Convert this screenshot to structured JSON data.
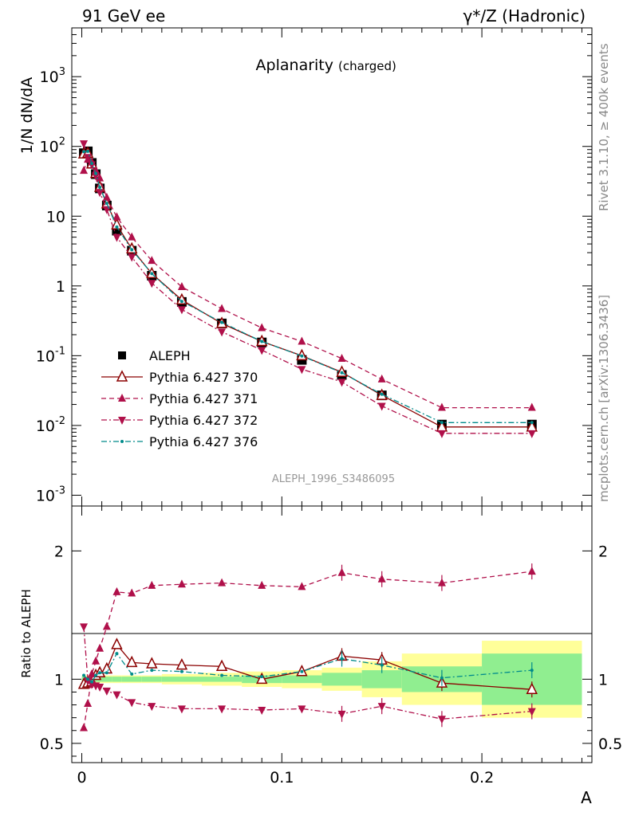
{
  "header": {
    "left": "91 GeV ee",
    "right": "γ*/Z (Hadronic)"
  },
  "side_labels": {
    "rivet": "Rivet 3.1.10, ≥ 400k events",
    "site": "mcplots.cern.ch [arXiv:1306.3436]"
  },
  "chart_data": [
    {
      "type": "line",
      "title": "Aplanarity",
      "subtitle": "(charged)",
      "ylabel": "1/N dN/dA",
      "yscale": "log",
      "ylim": [
        0.0007,
        5000
      ],
      "xlim": [
        -0.005,
        0.255
      ],
      "ytick_labels": [
        "10^-3",
        "10^-2",
        "10^-1",
        "1",
        "10",
        "10^2",
        "10^3"
      ],
      "watermark": "ALEPH_1996_S3486095",
      "legend_position": "bottom-left",
      "x": [
        0.001,
        0.003,
        0.005,
        0.007,
        0.009,
        0.0125,
        0.0175,
        0.025,
        0.035,
        0.05,
        0.07,
        0.09,
        0.11,
        0.13,
        0.15,
        0.18,
        0.225
      ],
      "series": [
        {
          "name": "ALEPH",
          "color": "#000000",
          "marker": "square",
          "line": "none",
          "values": [
            80,
            85,
            58,
            40,
            25,
            14.2,
            6.2,
            3.2,
            1.4,
            0.59,
            0.29,
            0.155,
            0.087,
            0.053,
            0.027,
            0.0103,
            0.0103
          ]
        },
        {
          "name": "Pythia 6.427 370",
          "color": "#8b0000",
          "marker": "open-triangle-up",
          "line": "solid",
          "values": [
            78,
            80,
            56,
            41,
            26,
            15,
            7.5,
            3.4,
            1.5,
            0.63,
            0.29,
            0.16,
            0.1,
            0.058,
            0.027,
            0.0095,
            0.0095
          ]
        },
        {
          "name": "Pythia 6.427 371",
          "color": "#b0104a",
          "marker": "triangle-up",
          "line": "dashed",
          "values": [
            45,
            65,
            60,
            45,
            35,
            18.5,
            9.7,
            5.0,
            2.3,
            0.97,
            0.47,
            0.25,
            0.16,
            0.091,
            0.046,
            0.018,
            0.018
          ]
        },
        {
          "name": "Pythia 6.427 372",
          "color": "#b0104a",
          "marker": "triangle-down",
          "line": "dash-dot",
          "values": [
            110,
            70,
            55,
            38,
            22,
            12.5,
            5.0,
            2.6,
            1.1,
            0.46,
            0.22,
            0.12,
            0.064,
            0.042,
            0.019,
            0.0077,
            0.0077
          ]
        },
        {
          "name": "Pythia 6.427 376",
          "color": "#008b8b",
          "marker": "dot",
          "line": "dash-dot",
          "values": [
            84,
            85,
            57,
            41,
            26,
            15.3,
            7.0,
            3.3,
            1.5,
            0.6,
            0.3,
            0.16,
            0.099,
            0.057,
            0.028,
            0.011,
            0.011
          ]
        }
      ]
    },
    {
      "type": "line",
      "ylabel": "Ratio to ALEPH",
      "xlabel": "A",
      "ylim": [
        0.35,
        2.35
      ],
      "xlim": [
        -0.005,
        0.255
      ],
      "ytick_labels": [
        "0.5",
        "1",
        "2"
      ],
      "xtick_labels": [
        "0",
        "0.1",
        "0.2"
      ],
      "x": [
        0.001,
        0.003,
        0.005,
        0.007,
        0.009,
        0.0125,
        0.0175,
        0.025,
        0.035,
        0.05,
        0.07,
        0.09,
        0.11,
        0.13,
        0.15,
        0.18,
        0.225
      ],
      "band_x_edges": [
        0,
        0.002,
        0.004,
        0.006,
        0.008,
        0.01,
        0.015,
        0.02,
        0.03,
        0.04,
        0.06,
        0.08,
        0.1,
        0.12,
        0.14,
        0.16,
        0.2,
        0.25
      ],
      "band_inner": [
        0.02,
        0.02,
        0.02,
        0.02,
        0.02,
        0.02,
        0.02,
        0.02,
        0.02,
        0.02,
        0.02,
        0.03,
        0.03,
        0.05,
        0.07,
        0.1,
        0.2
      ],
      "band_outer": [
        0.03,
        0.03,
        0.03,
        0.03,
        0.03,
        0.03,
        0.03,
        0.03,
        0.03,
        0.04,
        0.05,
        0.06,
        0.07,
        0.09,
        0.14,
        0.2,
        0.3
      ],
      "series": [
        {
          "name": "Pythia 6.427 370",
          "values": [
            0.96,
            0.97,
            0.98,
            1.03,
            1.05,
            1.08,
            1.27,
            1.13,
            1.12,
            1.11,
            1.1,
            1.0,
            1.06,
            1.18,
            1.15,
            0.97,
            0.92
          ]
        },
        {
          "name": "Pythia 6.427 371",
          "values": [
            0.62,
            0.81,
            1.04,
            1.14,
            1.24,
            1.41,
            1.68,
            1.67,
            1.73,
            1.74,
            1.75,
            1.73,
            1.72,
            1.83,
            1.78,
            1.75,
            1.84
          ]
        },
        {
          "name": "Pythia 6.427 372",
          "values": [
            1.41,
            0.99,
            0.96,
            0.95,
            0.94,
            0.91,
            0.88,
            0.82,
            0.79,
            0.77,
            0.77,
            0.76,
            0.77,
            0.73,
            0.79,
            0.69,
            0.75
          ]
        },
        {
          "name": "Pythia 6.427 376",
          "values": [
            1.03,
            1.0,
            0.98,
            1.03,
            1.05,
            1.05,
            1.2,
            1.04,
            1.07,
            1.06,
            1.03,
            1.02,
            1.06,
            1.16,
            1.11,
            1.01,
            1.07
          ]
        }
      ]
    }
  ]
}
